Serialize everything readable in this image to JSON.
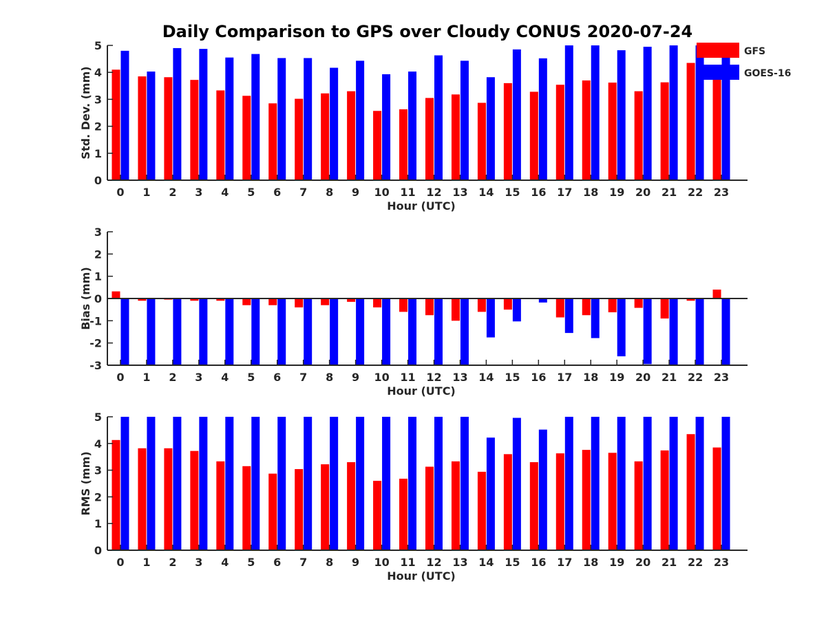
{
  "title": "Daily Comparison to GPS over Cloudy CONUS 2020-07-24",
  "colors": {
    "GFS": "#ff0000",
    "GOES-16": "#0000ff",
    "axis": "#262626"
  },
  "legend": {
    "placement": "top-right",
    "entries": [
      "GFS",
      "GOES-16"
    ]
  },
  "chart_data": [
    {
      "type": "bar",
      "ylabel": "Std. Dev. (mm)",
      "xlabel": "Hour (UTC)",
      "ylim": [
        0,
        5
      ],
      "yticks": [
        0,
        1,
        2,
        3,
        4,
        5
      ],
      "categories": [
        "0",
        "1",
        "2",
        "3",
        "4",
        "5",
        "6",
        "7",
        "8",
        "9",
        "10",
        "11",
        "12",
        "13",
        "14",
        "15",
        "16",
        "17",
        "18",
        "19",
        "20",
        "21",
        "22",
        "23"
      ],
      "series": [
        {
          "name": "GFS",
          "values": [
            4.1,
            3.85,
            3.82,
            3.72,
            3.33,
            3.13,
            2.85,
            3.02,
            3.22,
            3.3,
            2.57,
            2.63,
            3.05,
            3.18,
            2.87,
            3.6,
            3.28,
            3.54,
            3.7,
            3.62,
            3.3,
            3.63,
            4.35,
            3.83
          ]
        },
        {
          "name": "GOES-16",
          "values": [
            4.8,
            4.03,
            4.9,
            4.87,
            4.55,
            4.68,
            4.53,
            4.53,
            4.17,
            4.43,
            3.93,
            4.03,
            4.63,
            4.43,
            3.82,
            4.85,
            4.52,
            5.0,
            5.0,
            4.82,
            4.95,
            5.0,
            5.0,
            5.0
          ]
        }
      ]
    },
    {
      "type": "bar",
      "ylabel": "Bias (mm)",
      "xlabel": "Hour (UTC)",
      "ylim": [
        -3,
        3
      ],
      "yticks": [
        -3,
        -2,
        -1,
        0,
        1,
        2,
        3
      ],
      "zero_line": true,
      "categories": [
        "0",
        "1",
        "2",
        "3",
        "4",
        "5",
        "6",
        "7",
        "8",
        "9",
        "10",
        "11",
        "12",
        "13",
        "14",
        "15",
        "16",
        "17",
        "18",
        "19",
        "20",
        "21",
        "22",
        "23"
      ],
      "series": [
        {
          "name": "GFS",
          "values": [
            0.32,
            -0.1,
            -0.05,
            -0.1,
            -0.1,
            -0.3,
            -0.3,
            -0.4,
            -0.3,
            -0.15,
            -0.4,
            -0.6,
            -0.75,
            -1.0,
            -0.6,
            -0.5,
            0.02,
            -0.85,
            -0.75,
            -0.62,
            -0.42,
            -0.9,
            -0.1,
            0.4
          ]
        },
        {
          "name": "GOES-16",
          "values": [
            -3.0,
            -3.0,
            -3.0,
            -3.0,
            -3.0,
            -3.0,
            -3.0,
            -3.0,
            -3.0,
            -3.0,
            -3.0,
            -3.0,
            -3.0,
            -3.0,
            -1.75,
            -1.03,
            -0.18,
            -1.55,
            -1.78,
            -2.6,
            -2.95,
            -3.0,
            -3.0,
            -3.0
          ]
        }
      ]
    },
    {
      "type": "bar",
      "ylabel": "RMS (mm)",
      "xlabel": "Hour (UTC)",
      "ylim": [
        0,
        5
      ],
      "yticks": [
        0,
        1,
        2,
        3,
        4,
        5
      ],
      "categories": [
        "0",
        "1",
        "2",
        "3",
        "4",
        "5",
        "6",
        "7",
        "8",
        "9",
        "10",
        "11",
        "12",
        "13",
        "14",
        "15",
        "16",
        "17",
        "18",
        "19",
        "20",
        "21",
        "22",
        "23"
      ],
      "series": [
        {
          "name": "GFS",
          "values": [
            4.13,
            3.82,
            3.82,
            3.72,
            3.33,
            3.15,
            2.87,
            3.04,
            3.22,
            3.3,
            2.6,
            2.68,
            3.13,
            3.33,
            2.94,
            3.6,
            3.3,
            3.63,
            3.76,
            3.65,
            3.33,
            3.74,
            4.35,
            3.85
          ]
        },
        {
          "name": "GOES-16",
          "values": [
            5.0,
            5.0,
            5.0,
            5.0,
            5.0,
            5.0,
            5.0,
            5.0,
            5.0,
            5.0,
            5.0,
            5.0,
            5.0,
            5.0,
            4.22,
            4.96,
            4.52,
            5.0,
            5.0,
            5.0,
            5.0,
            5.0,
            5.0,
            5.0
          ]
        }
      ]
    }
  ]
}
